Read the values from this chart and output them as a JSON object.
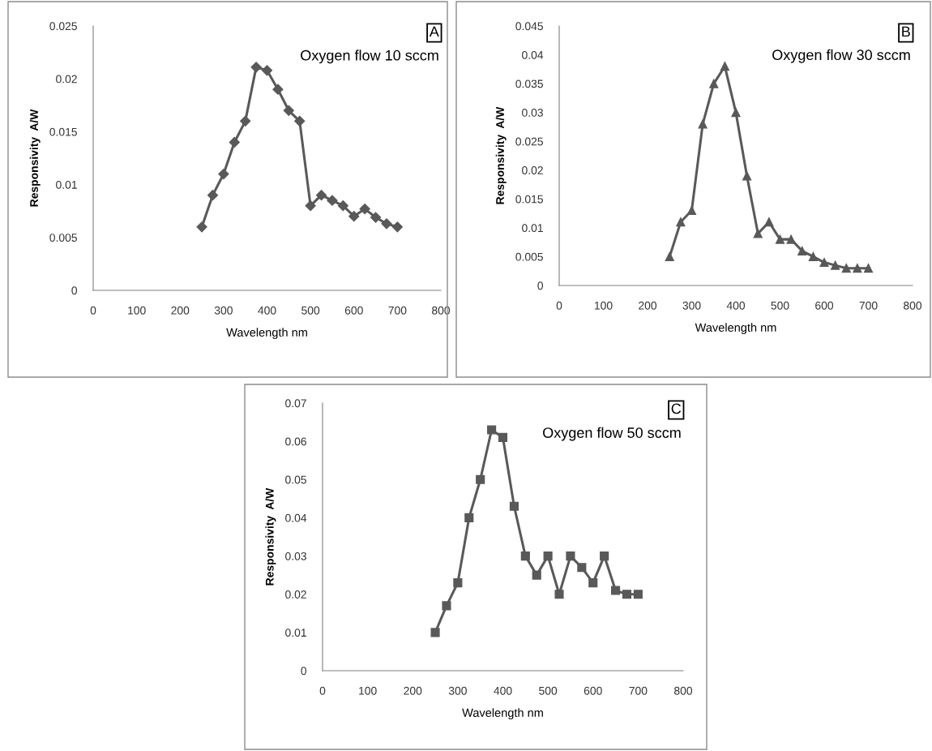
{
  "chart_data": [
    {
      "type": "line",
      "xlabel": "Wavelength nm",
      "ylabel": "Responsivity  A/W",
      "annotations": [
        "A",
        "Oxygen flow 10 sccm"
      ],
      "marker": "diamond",
      "grid": false,
      "legend": false,
      "xlim": [
        0,
        800
      ],
      "xticks": [
        0,
        100,
        200,
        300,
        400,
        500,
        600,
        700,
        800
      ],
      "ylim": [
        0,
        0.025
      ],
      "yticks": [
        0,
        0.005,
        0.01,
        0.015,
        0.02,
        0.025
      ],
      "x": [
        250,
        275,
        300,
        325,
        350,
        375,
        400,
        425,
        450,
        475,
        500,
        525,
        550,
        575,
        600,
        625,
        650,
        675,
        700
      ],
      "series": [
        {
          "color": "#595959",
          "values": [
            0.006,
            0.009,
            0.011,
            0.014,
            0.016,
            0.0211,
            0.0208,
            0.019,
            0.017,
            0.016,
            0.008,
            0.009,
            0.0085,
            0.008,
            0.007,
            0.0077,
            0.0069,
            0.0063,
            0.006
          ]
        }
      ]
    },
    {
      "type": "line",
      "xlabel": "Wavelength nm",
      "ylabel": "Responsivity  A/W",
      "annotations": [
        "B",
        "Oxygen flow 30 sccm"
      ],
      "marker": "triangle",
      "grid": false,
      "legend": false,
      "xlim": [
        0,
        800
      ],
      "xticks": [
        0,
        100,
        200,
        300,
        400,
        500,
        600,
        700,
        800
      ],
      "ylim": [
        0,
        0.045
      ],
      "yticks": [
        0,
        0.005,
        0.01,
        0.015,
        0.02,
        0.025,
        0.03,
        0.035,
        0.04,
        0.045
      ],
      "x": [
        250,
        275,
        300,
        325,
        350,
        375,
        400,
        425,
        450,
        475,
        500,
        525,
        550,
        575,
        600,
        625,
        650,
        675,
        700
      ],
      "series": [
        {
          "color": "#595959",
          "values": [
            0.005,
            0.011,
            0.013,
            0.028,
            0.035,
            0.038,
            0.03,
            0.019,
            0.009,
            0.011,
            0.008,
            0.008,
            0.006,
            0.005,
            0.004,
            0.0035,
            0.003,
            0.003,
            0.003
          ]
        }
      ]
    },
    {
      "type": "line",
      "xlabel": "Wavelength nm",
      "ylabel": "Responsivity  A/W",
      "annotations": [
        "C",
        "Oxygen flow 50 sccm"
      ],
      "marker": "square",
      "grid": false,
      "legend": false,
      "xlim": [
        0,
        800
      ],
      "xticks": [
        0,
        100,
        200,
        300,
        400,
        500,
        600,
        700,
        800
      ],
      "ylim": [
        0,
        0.07
      ],
      "yticks": [
        0,
        0.01,
        0.02,
        0.03,
        0.04,
        0.05,
        0.06,
        0.07
      ],
      "x": [
        250,
        275,
        300,
        325,
        350,
        375,
        400,
        425,
        450,
        475,
        500,
        525,
        550,
        575,
        600,
        625,
        650,
        675,
        700
      ],
      "series": [
        {
          "color": "#595959",
          "values": [
            0.01,
            0.017,
            0.023,
            0.04,
            0.05,
            0.063,
            0.061,
            0.043,
            0.03,
            0.025,
            0.03,
            0.02,
            0.03,
            0.027,
            0.023,
            0.03,
            0.021,
            0.02,
            0.02
          ]
        }
      ]
    }
  ]
}
